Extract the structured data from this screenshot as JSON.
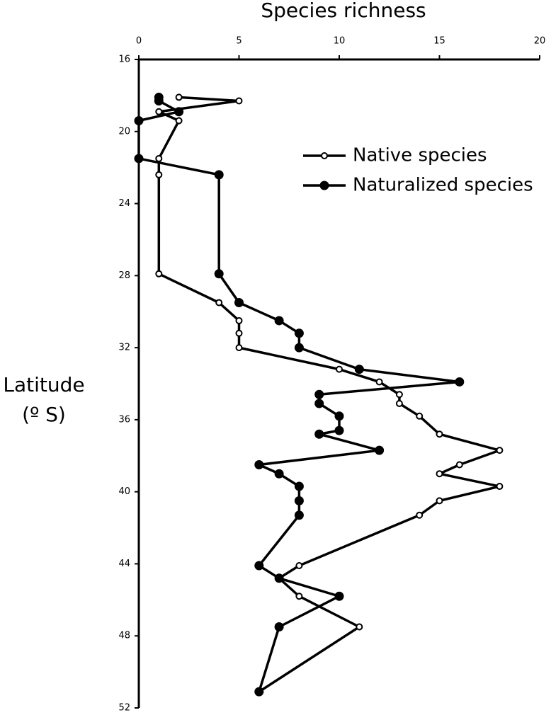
{
  "chart_data": {
    "type": "line",
    "title": "Species richness",
    "ylabel": [
      "Latitude",
      "(º S)"
    ],
    "xlim": [
      0,
      20
    ],
    "xticks": [
      0,
      5,
      10,
      15,
      20
    ],
    "ylim": [
      16,
      52
    ],
    "yticks": [
      16,
      20,
      24,
      28,
      32,
      36,
      40,
      44,
      48,
      52
    ],
    "y_inverted": true,
    "legend": "upper right",
    "series": [
      {
        "name": "Native species",
        "color": "#000000",
        "marker": "open",
        "x": [
          2,
          5,
          1,
          2,
          1,
          1,
          1,
          4,
          5,
          5,
          5,
          10,
          12,
          13,
          13,
          14,
          15,
          18,
          16,
          15,
          18,
          15,
          14,
          8,
          7,
          8,
          11,
          6
        ],
        "y": [
          18.1,
          18.3,
          18.9,
          19.4,
          21.5,
          22.4,
          27.9,
          29.5,
          30.5,
          31.2,
          32.0,
          33.2,
          33.9,
          34.6,
          35.1,
          35.8,
          36.8,
          37.7,
          38.5,
          39.0,
          39.7,
          40.5,
          41.3,
          44.1,
          44.8,
          45.8,
          47.5,
          51.1
        ]
      },
      {
        "name": "Naturalized species",
        "color": "#000000",
        "marker": "filled",
        "x": [
          1,
          1,
          2,
          0,
          0,
          4,
          4,
          5,
          7,
          8,
          8,
          11,
          16,
          9,
          9,
          10,
          10,
          9,
          12,
          6,
          7,
          8,
          8,
          8,
          6,
          7,
          10,
          7,
          6
        ],
        "y": [
          18.1,
          18.3,
          18.9,
          19.4,
          21.5,
          22.4,
          27.9,
          29.5,
          30.5,
          31.2,
          32.0,
          33.2,
          33.9,
          34.6,
          35.1,
          35.8,
          36.6,
          36.8,
          37.7,
          38.5,
          39.0,
          39.7,
          40.5,
          41.3,
          44.1,
          44.8,
          45.8,
          47.5,
          51.1
        ]
      }
    ]
  }
}
